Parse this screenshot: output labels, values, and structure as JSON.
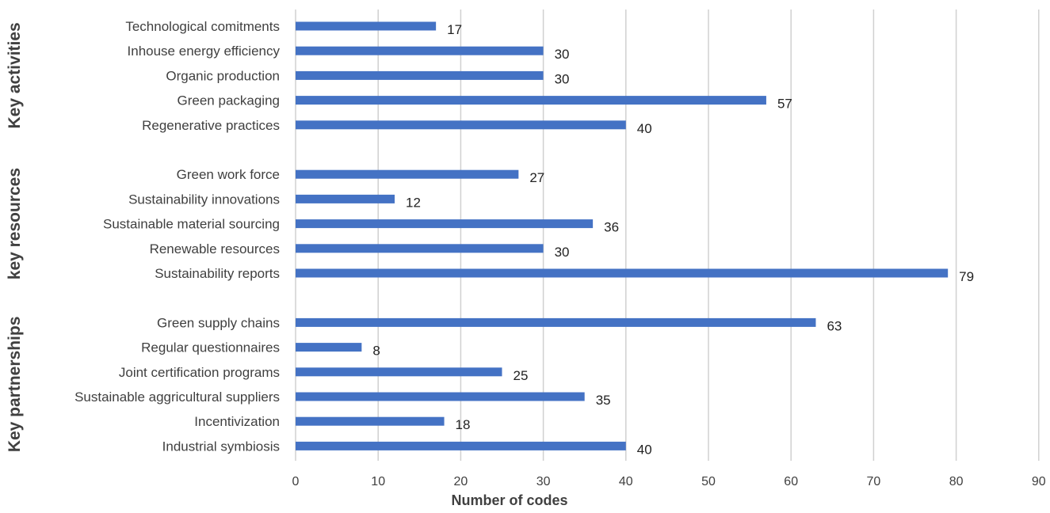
{
  "chart_data": {
    "type": "bar",
    "orientation": "horizontal",
    "xlabel": "Number of codes",
    "xlim": [
      0,
      90
    ],
    "x_ticks": [
      "0",
      "10",
      "20",
      "30",
      "40",
      "50",
      "60",
      "70",
      "80",
      "90"
    ],
    "grid": true,
    "bar_color": "#4472C4",
    "groups": [
      {
        "name": "Key activities",
        "categories": [
          "Technological comitments",
          "Inhouse energy efficiency",
          "Organic production",
          "Green packaging",
          "Regenerative practices"
        ],
        "values": [
          17,
          30,
          30,
          57,
          40
        ]
      },
      {
        "name": "key resources",
        "categories": [
          "Green work force",
          "Sustainability innovations",
          "Sustainable material sourcing",
          "Renewable resources",
          "Sustainability reports"
        ],
        "values": [
          27,
          12,
          36,
          30,
          79
        ]
      },
      {
        "name": "Key partnerships",
        "categories": [
          "Green supply chains",
          "Regular questionnaires",
          "Joint certification programs",
          "Sustainable aggricultural suppliers",
          "Incentivization",
          "Industrial symbiosis"
        ],
        "values": [
          63,
          8,
          25,
          35,
          18,
          40
        ]
      }
    ]
  }
}
